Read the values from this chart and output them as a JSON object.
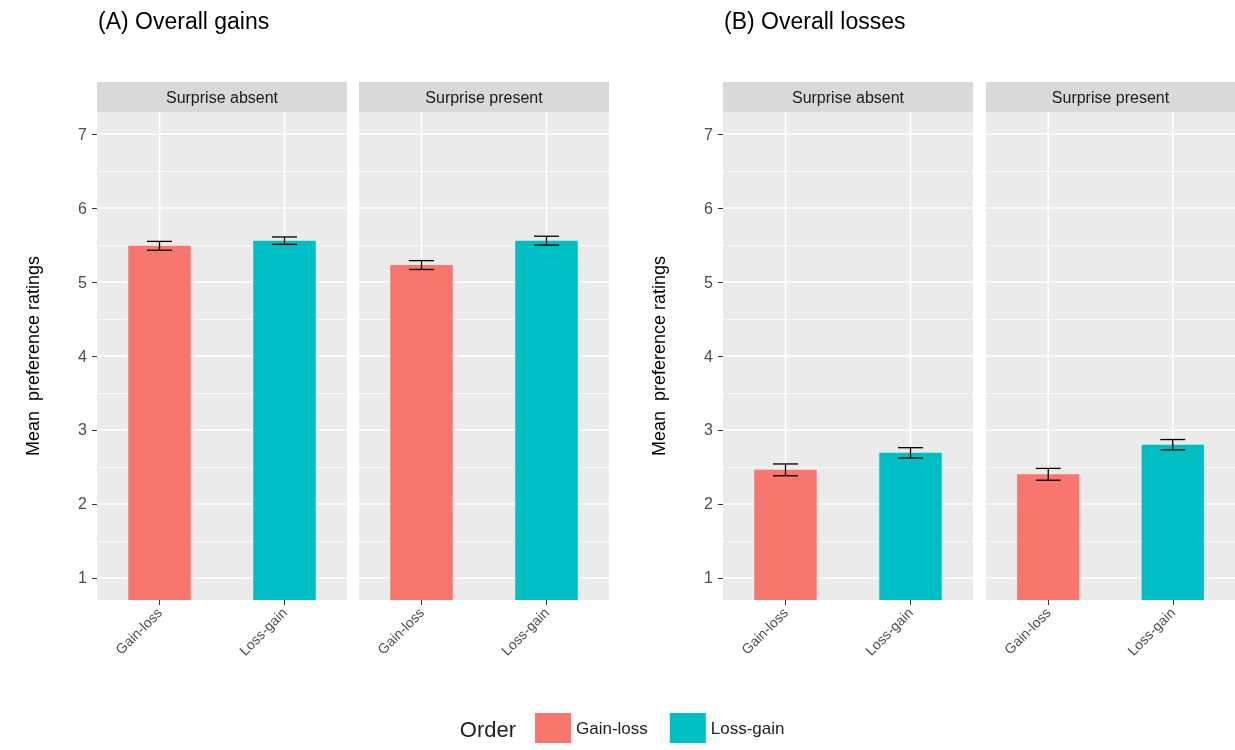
{
  "chart_data": [
    {
      "type": "bar",
      "title": "(A) Overall gains",
      "subtitle": "Surprise absent",
      "ylabel": "Mean  preference ratings",
      "categories": [
        "Gain-loss",
        "Loss-gain"
      ],
      "series": [
        {
          "name": "Gain-loss",
          "color": "#f8766d",
          "values": [
            5.49,
            null
          ],
          "errors": [
            0.06,
            null
          ]
        },
        {
          "name": "Loss-gain",
          "color": "#00bfc4",
          "values": [
            null,
            5.56
          ],
          "errors": [
            null,
            0.05
          ]
        }
      ],
      "ylim": [
        0.7,
        7.3
      ],
      "yticks": [
        1,
        2,
        3,
        4,
        5,
        6,
        7
      ],
      "grid": true,
      "legend": "bottom",
      "legend_title": "Order"
    },
    {
      "type": "bar",
      "subtitle": "Surprise present",
      "categories": [
        "Gain-loss",
        "Loss-gain"
      ],
      "series": [
        {
          "color": "#f8766d",
          "values": [
            5.23,
            null
          ],
          "errors": [
            0.06,
            null
          ]
        },
        {
          "color": "#00bfc4",
          "values": [
            null,
            5.56
          ],
          "errors": [
            null,
            0.06
          ]
        }
      ],
      "ylim": [
        0.7,
        7.3
      ],
      "yticks": [
        1,
        2,
        3,
        4,
        5,
        6,
        7
      ],
      "grid": true,
      "tick_labels": "x"
    },
    {
      "type": "bar",
      "title": "(B) Overall losses",
      "subtitle": "Surprise absent",
      "ylabel": "Mean  preference ratings",
      "categories": [
        "Gain-loss",
        "Loss-gain"
      ],
      "series": [
        {
          "color": "#f8766d",
          "values": [
            2.46,
            null
          ],
          "errors": [
            0.08,
            null
          ]
        },
        {
          "color": "#00bfc4",
          "values": [
            null,
            2.69
          ],
          "errors": [
            null,
            0.07
          ]
        }
      ],
      "ylim": [
        0.7,
        7.3
      ],
      "yticks": [
        1,
        2,
        3,
        4,
        5,
        6,
        7
      ],
      "grid": true
    },
    {
      "type": "bar",
      "subtitle": "Surprise present",
      "categories": [
        "Gain-loss",
        "Loss-gain"
      ],
      "series": [
        {
          "color": "#f8766d",
          "values": [
            2.4,
            null
          ],
          "errors": [
            0.08,
            null
          ]
        },
        {
          "color": "#00bfc4",
          "values": [
            null,
            2.8
          ],
          "errors": [
            null,
            0.07
          ]
        }
      ],
      "ylim": [
        0.7,
        7.3
      ],
      "yticks": [
        1,
        2,
        3,
        4,
        5,
        6,
        7
      ],
      "grid": true,
      "tick_labels": "x"
    }
  ]
}
